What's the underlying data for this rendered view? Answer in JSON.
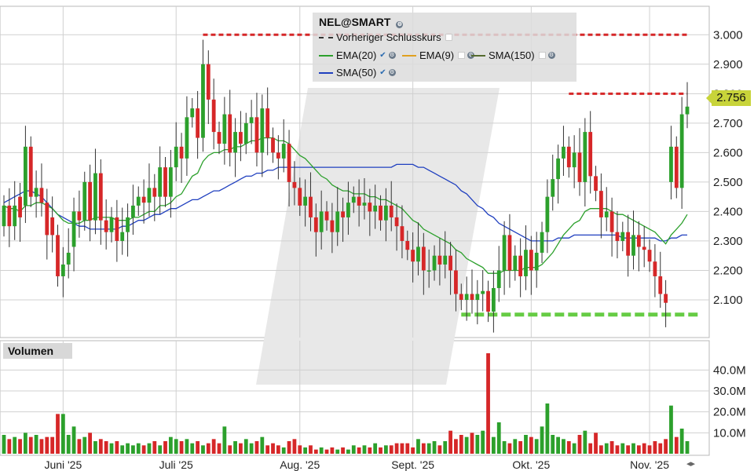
{
  "chart_data": {
    "type": "candlestick",
    "symbol": "NEL@SMART",
    "legend": {
      "prev_close_label": "Vorheriger Schlusskurs",
      "ema20_label": "EMA(20)",
      "ema9_label": "EMA(9)",
      "sma150_label": "SMA(150)",
      "sma50_label": "SMA(50)"
    },
    "volume_label": "Volumen",
    "last_price": "2.756",
    "y_ticks": [
      "3.000",
      "2.900",
      "2.800",
      "2.700",
      "2.600",
      "2.500",
      "2.400",
      "2.300",
      "2.200",
      "2.100"
    ],
    "y_tick_values": [
      3.0,
      2.9,
      2.8,
      2.7,
      2.6,
      2.5,
      2.4,
      2.3,
      2.2,
      2.1
    ],
    "ylim": [
      2.02,
      3.07
    ],
    "vol_ticks": [
      "40.0M",
      "30.0M",
      "20.0M",
      "10.0M"
    ],
    "vol_tick_values": [
      40,
      30,
      20,
      10
    ],
    "vol_max": 48,
    "x_ticks": [
      {
        "label": "Juni '25",
        "index": 11
      },
      {
        "label": "Juli '25",
        "index": 32
      },
      {
        "label": "Aug. '25",
        "index": 55
      },
      {
        "label": "Sept. '25",
        "index": 76
      },
      {
        "label": "Okt. '25",
        "index": 98
      },
      {
        "label": "Nov. '25",
        "index": 120
      }
    ],
    "resistance_levels": [
      {
        "value": 3.0,
        "from_index": 37,
        "to_index": 127
      },
      {
        "value": 2.8,
        "from_index": 105,
        "to_index": 127
      }
    ],
    "support_level": {
      "value": 2.05,
      "from_index": 85,
      "to_index": 129
    },
    "colors": {
      "up": "#2ca02c",
      "down": "#d62728",
      "ema20": "#2ca02c",
      "sma50": "#1f3fbf",
      "resistance": "#d62728",
      "support": "#66cc44",
      "volume_flat": "#e0d800"
    },
    "closes": [
      2.42,
      2.35,
      2.42,
      2.38,
      2.62,
      2.45,
      2.48,
      2.43,
      2.32,
      2.32,
      2.18,
      2.22,
      2.26,
      2.4,
      2.37,
      2.5,
      2.37,
      2.53,
      2.37,
      2.33,
      2.38,
      2.3,
      2.33,
      2.38,
      2.42,
      2.45,
      2.43,
      2.48,
      2.45,
      2.55,
      2.45,
      2.55,
      2.62,
      2.58,
      2.72,
      2.75,
      2.65,
      2.9,
      2.78,
      2.67,
      2.63,
      2.73,
      2.6,
      2.67,
      2.63,
      2.7,
      2.72,
      2.6,
      2.75,
      2.65,
      2.6,
      2.58,
      2.63,
      2.5,
      2.48,
      2.42,
      2.45,
      2.38,
      2.33,
      2.4,
      2.37,
      2.33,
      2.4,
      2.38,
      2.43,
      2.45,
      2.42,
      2.43,
      2.4,
      2.42,
      2.37,
      2.42,
      2.38,
      2.35,
      2.3,
      2.27,
      2.23,
      2.28,
      2.2,
      2.2,
      2.25,
      2.22,
      2.25,
      2.2,
      2.12,
      2.1,
      2.12,
      2.1,
      2.12,
      2.13,
      2.06,
      2.14,
      2.2,
      2.32,
      2.2,
      2.25,
      2.18,
      2.27,
      2.2,
      2.26,
      2.33,
      2.45,
      2.51,
      2.58,
      2.62,
      2.55,
      2.6,
      2.5,
      2.67,
      2.52,
      2.47,
      2.38,
      2.4,
      2.33,
      2.3,
      2.33,
      2.25,
      2.32,
      2.28,
      2.27,
      2.23,
      2.18,
      2.12,
      2.09,
      2.62,
      2.48,
      2.73,
      2.756
    ],
    "opens": [
      2.35,
      2.42,
      2.35,
      2.45,
      2.42,
      2.62,
      2.45,
      2.48,
      2.43,
      2.38,
      2.32,
      2.18,
      2.22,
      2.28,
      2.4,
      2.37,
      2.5,
      2.37,
      2.53,
      2.37,
      2.33,
      2.38,
      2.3,
      2.33,
      2.38,
      2.42,
      2.45,
      2.43,
      2.48,
      2.45,
      2.55,
      2.45,
      2.55,
      2.62,
      2.58,
      2.72,
      2.75,
      2.65,
      2.9,
      2.78,
      2.67,
      2.63,
      2.73,
      2.6,
      2.67,
      2.63,
      2.7,
      2.72,
      2.6,
      2.75,
      2.65,
      2.6,
      2.58,
      2.63,
      2.5,
      2.48,
      2.42,
      2.45,
      2.38,
      2.33,
      2.4,
      2.37,
      2.33,
      2.4,
      2.38,
      2.43,
      2.45,
      2.42,
      2.43,
      2.4,
      2.42,
      2.37,
      2.42,
      2.38,
      2.35,
      2.3,
      2.27,
      2.23,
      2.28,
      2.2,
      2.2,
      2.25,
      2.22,
      2.25,
      2.2,
      2.12,
      2.1,
      2.12,
      2.1,
      2.12,
      2.13,
      2.06,
      2.14,
      2.2,
      2.32,
      2.2,
      2.25,
      2.18,
      2.27,
      2.2,
      2.26,
      2.33,
      2.45,
      2.51,
      2.58,
      2.62,
      2.55,
      2.6,
      2.5,
      2.67,
      2.52,
      2.47,
      2.38,
      2.4,
      2.33,
      2.3,
      2.33,
      2.25,
      2.32,
      2.28,
      2.27,
      2.23,
      2.18,
      2.12,
      2.5,
      2.62,
      2.48,
      2.73
    ],
    "volumes": [
      9,
      7,
      8,
      7,
      10,
      8,
      9,
      7,
      8,
      8,
      19,
      19,
      9,
      13,
      7,
      8,
      10,
      6,
      7,
      6,
      5,
      6,
      4,
      5,
      4,
      5,
      4,
      5,
      6,
      4,
      6,
      8,
      7,
      6,
      7,
      5,
      6,
      4,
      5,
      7,
      5,
      13,
      4,
      6,
      5,
      7,
      5,
      6,
      8,
      4,
      5,
      4,
      3,
      6,
      7,
      4,
      3,
      4,
      2,
      3,
      2,
      3,
      2,
      3,
      2,
      4,
      3,
      4,
      3,
      5,
      3,
      4,
      4,
      5,
      5,
      5,
      3,
      7,
      5,
      5,
      6,
      4,
      6,
      11,
      7,
      9,
      8,
      10,
      9,
      11,
      48,
      8,
      15,
      6,
      5,
      7,
      6,
      9,
      8,
      7,
      13,
      24,
      9,
      8,
      7,
      6,
      5,
      9,
      11,
      5,
      10,
      4,
      5,
      6,
      4,
      5,
      4,
      5,
      4,
      5,
      4,
      6,
      5,
      7,
      23,
      8,
      12,
      6
    ],
    "ema20": [
      2.42,
      2.41,
      2.41,
      2.4,
      2.42,
      2.42,
      2.43,
      2.43,
      2.42,
      2.41,
      2.39,
      2.37,
      2.36,
      2.36,
      2.36,
      2.37,
      2.37,
      2.38,
      2.38,
      2.38,
      2.38,
      2.37,
      2.37,
      2.37,
      2.38,
      2.38,
      2.39,
      2.4,
      2.4,
      2.42,
      2.42,
      2.43,
      2.45,
      2.46,
      2.49,
      2.52,
      2.53,
      2.57,
      2.59,
      2.6,
      2.6,
      2.61,
      2.61,
      2.62,
      2.62,
      2.63,
      2.64,
      2.64,
      2.65,
      2.65,
      2.65,
      2.64,
      2.64,
      2.63,
      2.61,
      2.59,
      2.58,
      2.56,
      2.54,
      2.52,
      2.51,
      2.49,
      2.48,
      2.47,
      2.47,
      2.46,
      2.46,
      2.46,
      2.45,
      2.45,
      2.44,
      2.44,
      2.43,
      2.42,
      2.41,
      2.39,
      2.37,
      2.36,
      2.34,
      2.33,
      2.32,
      2.31,
      2.3,
      2.29,
      2.27,
      2.26,
      2.24,
      2.23,
      2.22,
      2.21,
      2.19,
      2.19,
      2.19,
      2.2,
      2.2,
      2.2,
      2.2,
      2.21,
      2.21,
      2.21,
      2.22,
      2.24,
      2.26,
      2.29,
      2.32,
      2.34,
      2.36,
      2.37,
      2.4,
      2.41,
      2.41,
      2.41,
      2.41,
      2.4,
      2.39,
      2.39,
      2.38,
      2.37,
      2.36,
      2.35,
      2.34,
      2.33,
      2.31,
      2.29,
      2.32,
      2.34,
      2.36,
      2.39
    ],
    "sma50": [
      2.43,
      2.44,
      2.45,
      2.46,
      2.47,
      2.47,
      2.46,
      2.45,
      2.43,
      2.41,
      2.39,
      2.38,
      2.37,
      2.36,
      2.35,
      2.35,
      2.34,
      2.34,
      2.34,
      2.34,
      2.34,
      2.34,
      2.35,
      2.35,
      2.36,
      2.37,
      2.37,
      2.38,
      2.39,
      2.39,
      2.4,
      2.41,
      2.41,
      2.42,
      2.43,
      2.44,
      2.44,
      2.45,
      2.46,
      2.47,
      2.47,
      2.48,
      2.49,
      2.5,
      2.51,
      2.52,
      2.52,
      2.53,
      2.53,
      2.54,
      2.54,
      2.55,
      2.55,
      2.55,
      2.55,
      2.55,
      2.55,
      2.55,
      2.55,
      2.55,
      2.55,
      2.55,
      2.55,
      2.55,
      2.55,
      2.55,
      2.55,
      2.55,
      2.55,
      2.55,
      2.55,
      2.55,
      2.55,
      2.56,
      2.56,
      2.56,
      2.56,
      2.55,
      2.55,
      2.54,
      2.53,
      2.52,
      2.51,
      2.5,
      2.49,
      2.47,
      2.46,
      2.44,
      2.42,
      2.41,
      2.39,
      2.38,
      2.36,
      2.35,
      2.34,
      2.33,
      2.32,
      2.31,
      2.3,
      2.3,
      2.3,
      2.3,
      2.3,
      2.31,
      2.31,
      2.31,
      2.32,
      2.32,
      2.32,
      2.32,
      2.32,
      2.32,
      2.32,
      2.32,
      2.32,
      2.31,
      2.31,
      2.31,
      2.31,
      2.31,
      2.31,
      2.31,
      2.3,
      2.3,
      2.31,
      2.31,
      2.32,
      2.32
    ]
  }
}
